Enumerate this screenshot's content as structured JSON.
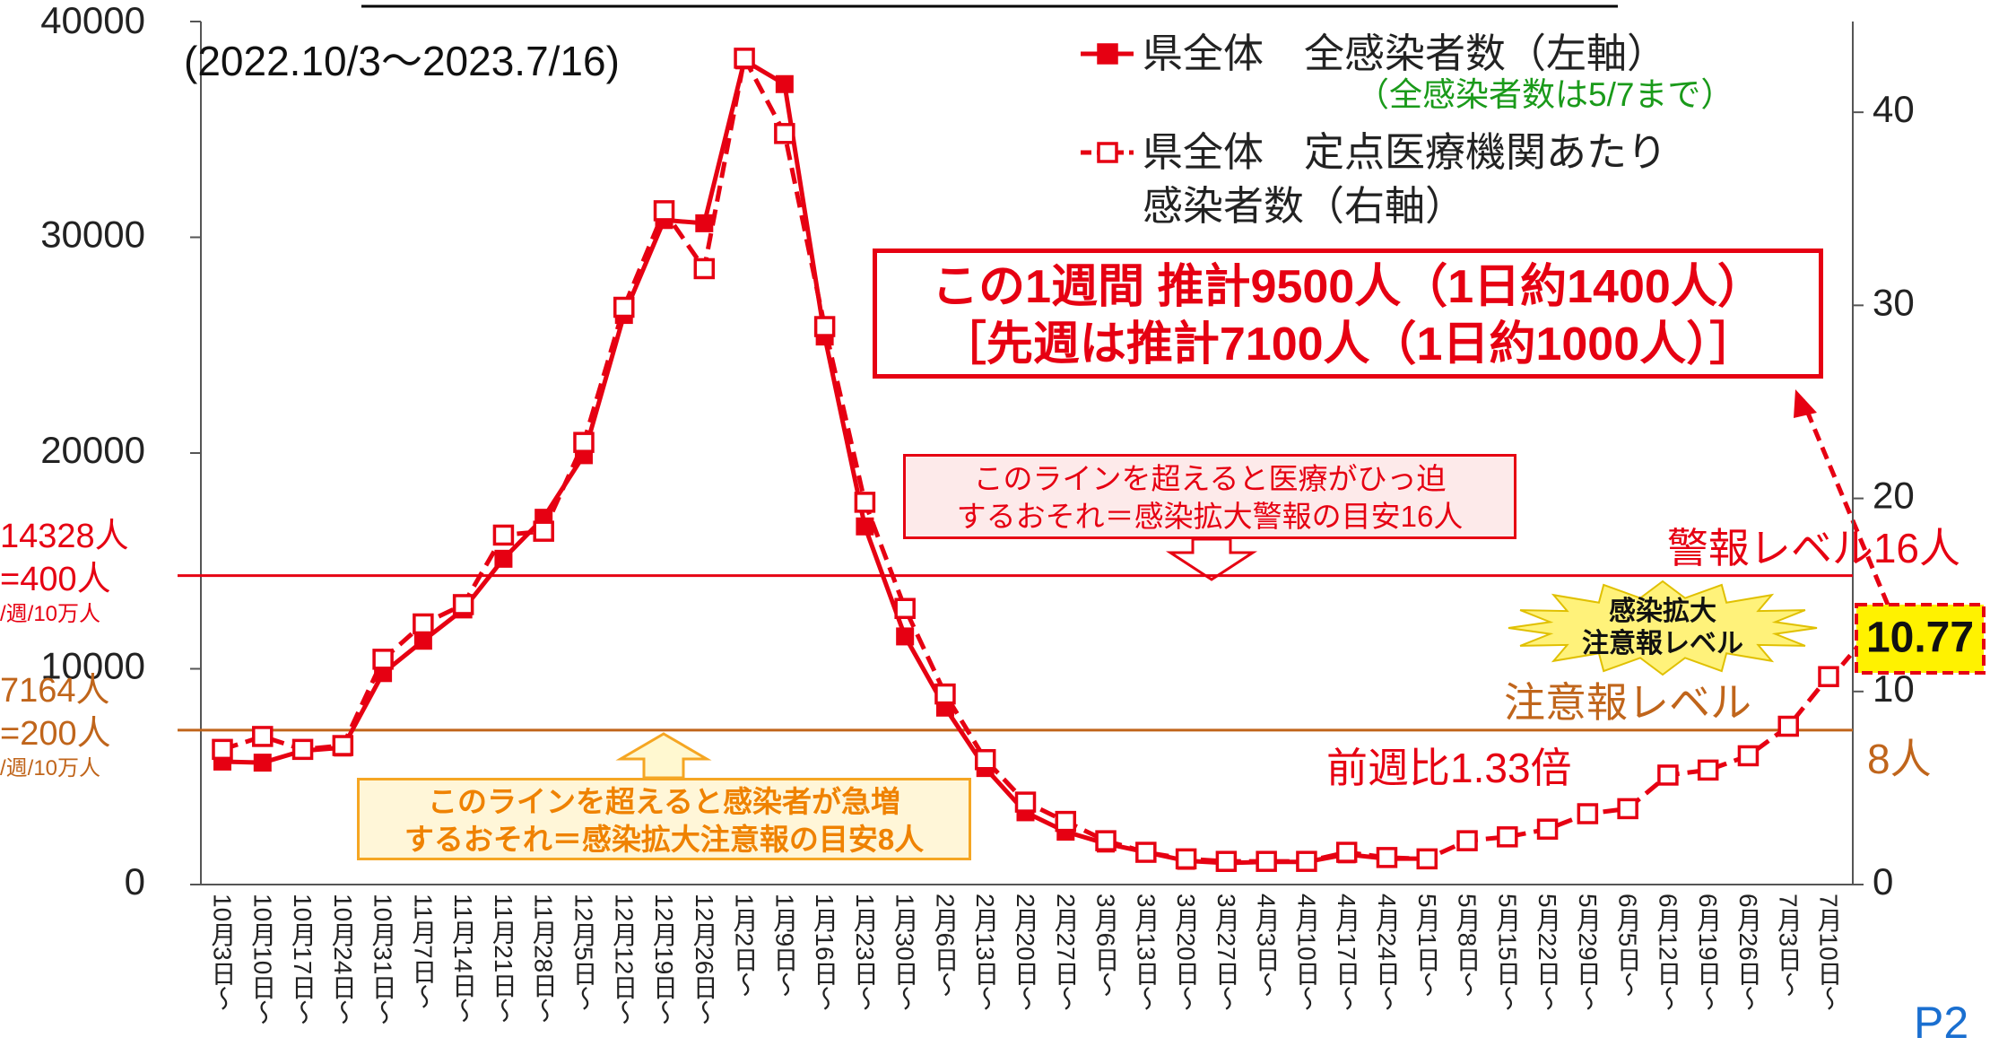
{
  "chart_data": {
    "type": "line",
    "categories": [
      "10月3日～",
      "10月10日～",
      "10月17日～",
      "10月24日～",
      "10月31日～",
      "11月7日～",
      "11月14日～",
      "11月21日～",
      "11月28日～",
      "12月5日～",
      "12月12日～",
      "12月19日～",
      "12月26日～",
      "1月2日～",
      "1月9日～",
      "1月16日～",
      "1月23日～",
      "1月30日～",
      "2月6日～",
      "2月13日～",
      "2月20日～",
      "2月27日～",
      "3月6日～",
      "3月13日～",
      "3月20日～",
      "3月27日～",
      "4月3日～",
      "4月10日～",
      "4月17日～",
      "4月24日～",
      "5月1日～",
      "5月8日～",
      "5月15日～",
      "5月22日～",
      "5月29日～",
      "6月5日～",
      "6月12日～",
      "6月19日～",
      "6月26日～",
      "7月3日～",
      "7月10日～"
    ],
    "series": [
      {
        "name": "県全体　全感染者数（左軸）",
        "color": "#e60012",
        "axis": "y",
        "dashed": false,
        "marker": "filled",
        "values": [
          5700,
          5650,
          6200,
          6350,
          9800,
          11300,
          12750,
          15100,
          17000,
          19900,
          26400,
          30800,
          30650,
          38200,
          37100,
          25400,
          16600,
          11500,
          8200,
          5400,
          3350,
          2450,
          1900,
          1500,
          1100,
          1000,
          1050,
          1050,
          1400,
          1200,
          1200,
          null,
          null,
          null,
          null,
          null,
          null,
          null,
          null,
          null,
          null
        ]
      },
      {
        "name": "県全体　定点医療機関あたり\n感染者数（右軸）",
        "color": "#e60012",
        "axis": "y2",
        "dashed": true,
        "marker": "open",
        "values": [
          7.0,
          7.67,
          7.0,
          7.2,
          11.67,
          13.5,
          14.5,
          18.1,
          18.3,
          22.9,
          29.9,
          34.9,
          31.9,
          42.8,
          38.9,
          28.9,
          19.8,
          14.3,
          9.87,
          6.47,
          4.27,
          3.27,
          2.27,
          1.67,
          1.33,
          1.2,
          1.2,
          1.2,
          1.67,
          1.4,
          1.33,
          2.27,
          2.47,
          2.87,
          3.67,
          3.93,
          5.67,
          5.93,
          6.67,
          8.2,
          10.77
        ],
        "value_labels": [
          null,
          null,
          null,
          null,
          null,
          null,
          null,
          null,
          null,
          null,
          null,
          null,
          null,
          null,
          null,
          null,
          null,
          null,
          null,
          null,
          null,
          null,
          null,
          null,
          null,
          null,
          null,
          null,
          null,
          null,
          null,
          null,
          null,
          null,
          null,
          null,
          null,
          null,
          null,
          null,
          "10.77"
        ]
      }
    ],
    "legend_note": "（全感染者数は5/7まで）",
    "ylim": [
      0,
      40000
    ],
    "yticks": [
      0,
      10000,
      20000,
      30000,
      40000
    ],
    "y2lim": [
      0,
      44.7
    ],
    "y2ticks": [
      0,
      10,
      20,
      30,
      40
    ],
    "thresholds": [
      {
        "value": 16,
        "axis": "y2",
        "color": "#e60012",
        "label": "警報レベル16人",
        "left_label": [
          "14328人",
          "=400人",
          "/週/10万人"
        ]
      },
      {
        "value": 8,
        "axis": "y2",
        "color": "#c0651b",
        "label": "注意報レベル",
        "right_label": "8人",
        "left_label": [
          "7164人",
          "=200人",
          "/週/10万人"
        ]
      }
    ],
    "annotations": {
      "period": "(2022.10/3～2023.7/16)",
      "estimate_box": [
        "この1週間 推計9500人（1日約1400人）",
        "［先週は推計7100人（1日約1000人）］"
      ],
      "alert_note": [
        "このラインを超えると医療がひっ迫",
        "するおそれ＝感染拡大警報の目安16人"
      ],
      "caution_note": [
        "このラインを超えると感染者が急増",
        "するおそれ＝感染拡大注意報の目安8人"
      ],
      "star": [
        "感染拡大",
        "注意報レベル"
      ],
      "ratio": "前週比1.33倍",
      "page": "P2"
    }
  }
}
